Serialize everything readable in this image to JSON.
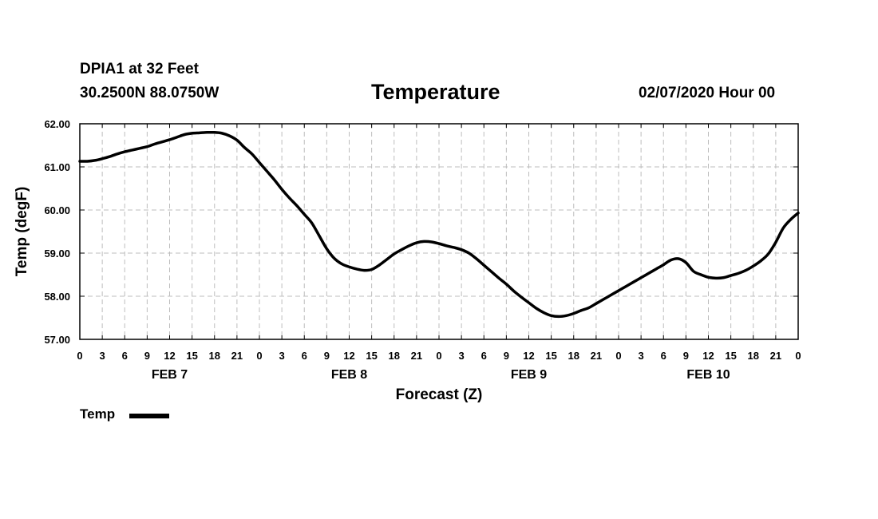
{
  "header": {
    "station": "DPIA1 at 32 Feet",
    "coords": "30.2500N 88.0750W",
    "title": "Temperature",
    "datetime": "02/07/2020 Hour 00"
  },
  "legend": {
    "label": "Temp",
    "color": "#000000"
  },
  "chart_data": {
    "type": "line",
    "title": "Temperature",
    "xlabel": "Forecast (Z)",
    "ylabel": "Temp (degF)",
    "ylim": [
      57,
      62
    ],
    "xlim": [
      0,
      96
    ],
    "yticks": [
      "57.00",
      "58.00",
      "59.00",
      "60.00",
      "61.00",
      "62.00"
    ],
    "x_tick_step_hours": 3,
    "x_tick_labels": [
      "0",
      "3",
      "6",
      "9",
      "12",
      "15",
      "18",
      "21",
      "0",
      "3",
      "6",
      "9",
      "12",
      "15",
      "18",
      "21",
      "0",
      "3",
      "6",
      "9",
      "12",
      "15",
      "18",
      "21",
      "0",
      "3",
      "6",
      "9",
      "12",
      "15",
      "18",
      "21",
      "0"
    ],
    "day_labels": [
      {
        "label": "FEB 7",
        "hour": 12
      },
      {
        "label": "FEB 8",
        "hour": 36
      },
      {
        "label": "FEB 9",
        "hour": 60
      },
      {
        "label": "FEB 10",
        "hour": 84
      }
    ],
    "grid": true,
    "legend_position": "bottom-left",
    "series": [
      {
        "name": "Temp",
        "x": [
          0,
          1,
          2,
          3,
          4,
          5,
          6,
          7,
          8,
          9,
          10,
          11,
          12,
          13,
          14,
          15,
          16,
          17,
          18,
          19,
          20,
          21,
          22,
          23,
          24,
          25,
          26,
          27,
          28,
          29,
          30,
          31,
          32,
          33,
          34,
          35,
          36,
          37,
          38,
          39,
          40,
          41,
          42,
          43,
          44,
          45,
          46,
          47,
          48,
          49,
          50,
          51,
          52,
          53,
          54,
          55,
          56,
          57,
          58,
          59,
          60,
          61,
          62,
          63,
          64,
          65,
          66,
          67,
          68,
          69,
          70,
          71,
          72,
          73,
          74,
          75,
          76,
          77,
          78,
          79,
          80,
          81,
          82,
          83,
          84,
          85,
          86,
          87,
          88,
          89,
          90,
          91,
          92,
          93,
          94,
          95,
          96
        ],
        "y": [
          61.13,
          61.13,
          61.15,
          61.19,
          61.24,
          61.3,
          61.35,
          61.39,
          61.43,
          61.47,
          61.53,
          61.58,
          61.63,
          61.69,
          61.75,
          61.78,
          61.79,
          61.8,
          61.8,
          61.78,
          61.72,
          61.62,
          61.45,
          61.3,
          61.1,
          60.9,
          60.7,
          60.48,
          60.28,
          60.1,
          59.9,
          59.7,
          59.4,
          59.1,
          58.88,
          58.75,
          58.68,
          58.63,
          58.6,
          58.62,
          58.72,
          58.85,
          58.98,
          59.08,
          59.17,
          59.24,
          59.27,
          59.26,
          59.22,
          59.17,
          59.13,
          59.08,
          59.0,
          58.87,
          58.72,
          58.57,
          58.42,
          58.28,
          58.12,
          57.98,
          57.85,
          57.72,
          57.62,
          57.55,
          57.53,
          57.55,
          57.6,
          57.67,
          57.73,
          57.83,
          57.93,
          58.03,
          58.13,
          58.23,
          58.33,
          58.43,
          58.53,
          58.63,
          58.73,
          58.84,
          58.87,
          58.78,
          58.58,
          58.5,
          58.44,
          58.42,
          58.43,
          58.48,
          58.53,
          58.6,
          58.7,
          58.82,
          58.98,
          59.25,
          59.58,
          59.78,
          59.93
        ]
      }
    ]
  }
}
